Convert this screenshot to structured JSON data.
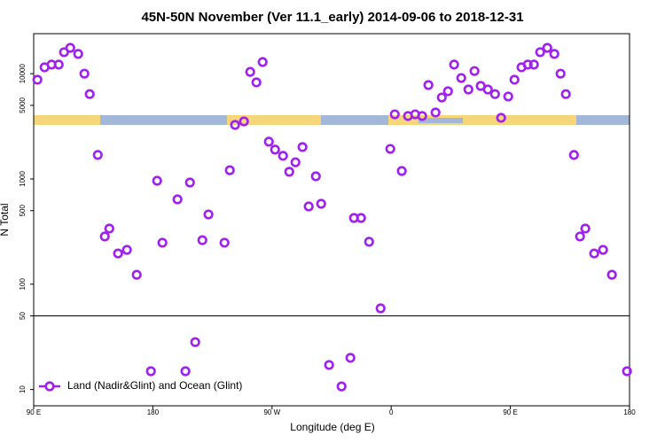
{
  "chart_data": {
    "type": "scatter",
    "title": "45N-50N November (Ver 11.1_early)   2014-09-06 to 2018-12-31",
    "x_label": "Longitude (deg E)",
    "y_label": "N Total",
    "x": [
      -267.2,
      -261.8,
      -256.5,
      -251.1,
      -247.1,
      -242.4,
      -236.4,
      -231.7,
      -227.7,
      -221.6,
      -216.3,
      -212.9,
      -206.3,
      -199.6,
      -192.2,
      -181.5,
      -176.8,
      -172.8,
      -161.4,
      -155.4,
      -152.0,
      -148.0,
      -142.6,
      -138.0,
      -125.9,
      -121.9,
      -117.9,
      -111.2,
      -106.5,
      -101.8,
      -97.1,
      -92.4,
      -87.7,
      -81.7,
      -77.0,
      -72.3,
      -67.0,
      -62.3,
      -56.9,
      -52.9,
      -46.9,
      -37.5,
      -30.8,
      -28.1,
      -22.8,
      -16.7,
      -8.0,
      -0.7,
      2.7,
      8.0,
      12.7,
      18.1,
      23.4,
      28.1,
      33.5,
      38.2,
      42.9,
      47.5,
      52.9,
      58.3,
      62.9,
      67.6,
      73.0,
      78.4,
      83.0,
      88.4,
      93.1,
      98.4,
      103.1,
      107.8,
      112.5,
      117.9,
      123.2,
      127.9,
      131.9,
      138.0,
      142.6,
      146.6,
      153.3,
      160.0,
      166.7,
      178.1
    ],
    "series": [
      {
        "name": "Land (Nadir&Glint) and Ocean (Glint)",
        "color": "#a020f0",
        "values": [
          8770,
          11500,
          12200,
          12200,
          16000,
          17600,
          15400,
          10000,
          6400,
          1690,
          284,
          338,
          196,
          212,
          123,
          14.9,
          961,
          248,
          640,
          14.9,
          925,
          28.2,
          262,
          460,
          248,
          1210,
          3260,
          3520,
          10400,
          8270,
          12900,
          2260,
          1900,
          1660,
          1170,
          1440,
          2010,
          548,
          1060,
          581,
          17.1,
          10.7,
          20,
          426,
          426,
          253,
          59,
          1930,
          4110,
          1190,
          3960,
          4110,
          3960,
          7800,
          4280,
          5940,
          6810,
          12200,
          9100,
          7080,
          10600,
          7650,
          7080,
          6400,
          3810,
          6070,
          8770,
          11500,
          12200,
          12200,
          16000,
          17600,
          15400,
          10000,
          6400,
          1690,
          284,
          338,
          196,
          212,
          123,
          14.9
        ]
      }
    ],
    "xlim": [
      -270,
      180
    ],
    "xticks": [
      {
        "value": -270,
        "label": "90 E"
      },
      {
        "value": -180,
        "label": "180"
      },
      {
        "value": -90,
        "label": "90 W"
      },
      0,
      {
        "value": 90,
        "label": "90 E"
      },
      180
    ],
    "ylim": [
      7,
      24000
    ],
    "log_y": true,
    "yticks": [
      10,
      50,
      100,
      500,
      1000,
      5000,
      10000
    ],
    "hline": 50,
    "legend": "bottom-left"
  }
}
